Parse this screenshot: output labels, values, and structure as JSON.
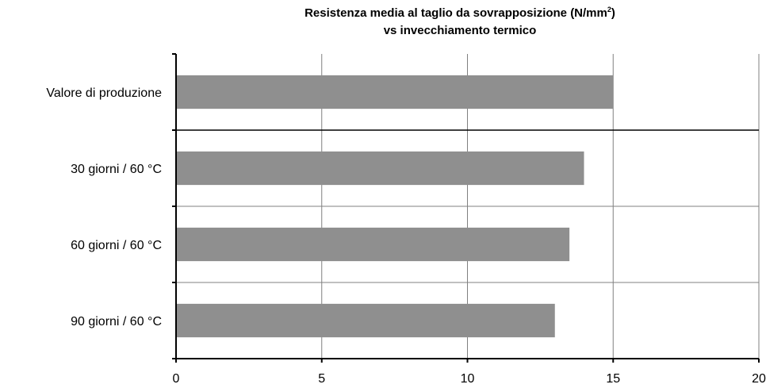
{
  "chart_data": {
    "type": "bar",
    "orientation": "horizontal",
    "title_line1_main": "Resistenza media al taglio da sovrapposizione (N/mm",
    "title_line1_sup": "2",
    "title_line1_end": ")",
    "title_line2": "vs invecchiamento termico",
    "categories": [
      "Valore di produzione",
      "30 giorni / 60 °C",
      "60 giorni / 60 °C",
      "90 giorni / 60 °C"
    ],
    "values": [
      15,
      14,
      13.5,
      13
    ],
    "xlim": [
      0,
      20
    ],
    "xticks": [
      "0",
      "5",
      "10",
      "15",
      "20"
    ],
    "grid": true,
    "bar_color": "#8f8f8f"
  }
}
